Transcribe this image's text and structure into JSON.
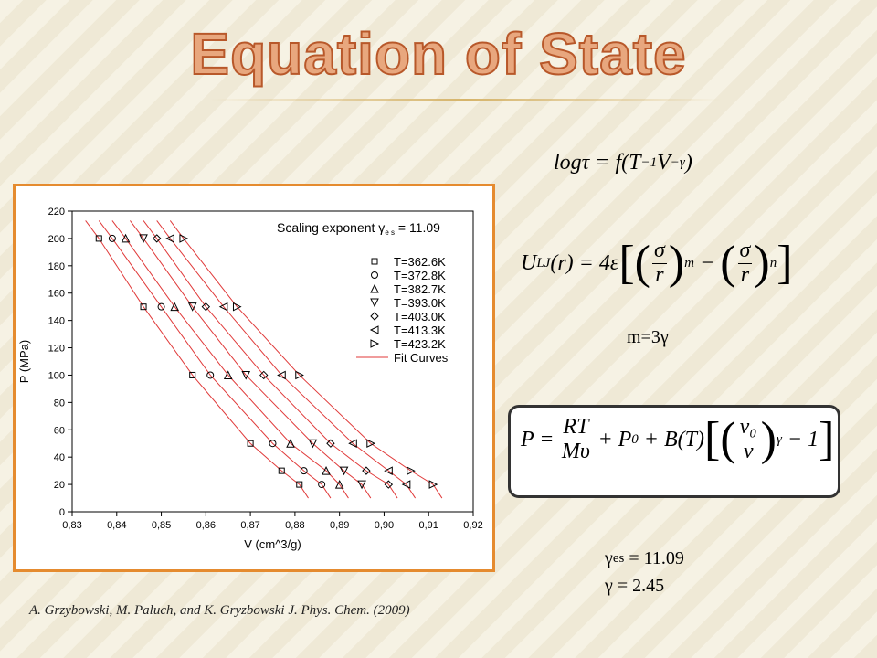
{
  "slide": {
    "title": "Equation of State",
    "eq1": [
      {
        "text": "logτ = f(T"
      },
      {
        "sup": "−1"
      },
      {
        "text": "V"
      },
      {
        "sup": "−γ"
      },
      {
        "text": ")"
      }
    ],
    "eq2": [
      {
        "text": "U"
      },
      {
        "sub": "LJ"
      },
      {
        "text": "(r) = 4ε"
      },
      {
        "big": "["
      },
      {
        "big": "("
      },
      {
        "num": "σ",
        "den": "r"
      },
      {
        "big": ")"
      },
      {
        "sup": "m"
      },
      {
        "text": " − "
      },
      {
        "big": "("
      },
      {
        "num": "σ",
        "den": "r"
      },
      {
        "big": ")"
      },
      {
        "sup": "n"
      },
      {
        "big": "]"
      }
    ],
    "eq3": [
      {
        "text": "m=3γ"
      }
    ],
    "eq4": [
      {
        "text": "P = "
      },
      {
        "num": "RT",
        "den": "Mυ"
      },
      {
        "text": " + P"
      },
      {
        "sub": "0"
      },
      {
        "text": " + B(T)"
      },
      {
        "big": "["
      },
      {
        "big": "("
      },
      {
        "num": "v₀",
        "den": "v"
      },
      {
        "big": ")"
      },
      {
        "sup": "γ"
      },
      {
        "text": " − 1"
      },
      {
        "big": "]"
      }
    ],
    "res1": [
      {
        "text": "γ"
      },
      {
        "sub": "es"
      },
      {
        "text": " = 11.09"
      }
    ],
    "res2": [
      {
        "text": "γ = 2.45"
      }
    ],
    "citation": "A. Grzybowski, M. Paluch, and K. Gryzbowski J. Phys. Chem. (2009)"
  },
  "chart_data": {
    "type": "scatter",
    "xlabel": "V (cm^3/g)",
    "ylabel": "P (MPa)",
    "annotation": [
      {
        "text": "Scaling exponent γ"
      },
      {
        "sub": "e s"
      },
      {
        "text": " = 11.09"
      }
    ],
    "xlim": [
      0.83,
      0.92
    ],
    "ylim": [
      0,
      220
    ],
    "xticks": [
      {
        "value": 0.83,
        "label": "0,83"
      },
      {
        "value": 0.84,
        "label": "0,84"
      },
      {
        "value": 0.85,
        "label": "0,85"
      },
      {
        "value": 0.86,
        "label": "0,86"
      },
      {
        "value": 0.87,
        "label": "0,87"
      },
      {
        "value": 0.88,
        "label": "0,88"
      },
      {
        "value": 0.89,
        "label": "0,89"
      },
      {
        "value": 0.9,
        "label": "0,90"
      },
      {
        "value": 0.91,
        "label": "0,91"
      },
      {
        "value": 0.92,
        "label": "0,92"
      }
    ],
    "yticks": [
      0,
      20,
      40,
      60,
      80,
      100,
      120,
      140,
      160,
      180,
      200,
      220
    ],
    "fit_name": "Fit Curves",
    "fit_color": "#e03a3a",
    "series": [
      {
        "name": "T=362.6K",
        "marker": "square",
        "color": "#000000",
        "x": [
          0.836,
          0.846,
          0.857,
          0.87,
          0.877,
          0.881
        ],
        "y": [
          200,
          150,
          100,
          50,
          30,
          20
        ],
        "fit_x": [
          0.833,
          0.836,
          0.846,
          0.857,
          0.87,
          0.877,
          0.881,
          0.883
        ],
        "fit_y": [
          213,
          200,
          150,
          100,
          50,
          30,
          20,
          10
        ]
      },
      {
        "name": "T=372.8K",
        "marker": "circle",
        "color": "#000000",
        "x": [
          0.839,
          0.85,
          0.861,
          0.875,
          0.882,
          0.886
        ],
        "y": [
          200,
          150,
          100,
          50,
          30,
          20
        ],
        "fit_x": [
          0.836,
          0.839,
          0.85,
          0.861,
          0.875,
          0.882,
          0.886,
          0.888
        ],
        "fit_y": [
          213,
          200,
          150,
          100,
          50,
          30,
          20,
          10
        ]
      },
      {
        "name": "T=382.7K",
        "marker": "triangle-up",
        "color": "#000000",
        "x": [
          0.842,
          0.853,
          0.865,
          0.879,
          0.887,
          0.89
        ],
        "y": [
          200,
          150,
          100,
          50,
          30,
          20
        ],
        "fit_x": [
          0.839,
          0.842,
          0.853,
          0.865,
          0.879,
          0.887,
          0.89,
          0.892
        ],
        "fit_y": [
          213,
          200,
          150,
          100,
          50,
          30,
          20,
          10
        ]
      },
      {
        "name": "T=393.0K",
        "marker": "triangle-down",
        "color": "#000000",
        "x": [
          0.846,
          0.857,
          0.869,
          0.884,
          0.891,
          0.895
        ],
        "y": [
          200,
          150,
          100,
          50,
          30,
          20
        ],
        "fit_x": [
          0.843,
          0.846,
          0.857,
          0.869,
          0.884,
          0.891,
          0.895,
          0.897
        ],
        "fit_y": [
          213,
          200,
          150,
          100,
          50,
          30,
          20,
          10
        ]
      },
      {
        "name": "T=403.0K",
        "marker": "diamond",
        "color": "#000000",
        "x": [
          0.849,
          0.86,
          0.873,
          0.888,
          0.896,
          0.901
        ],
        "y": [
          200,
          150,
          100,
          50,
          30,
          20
        ],
        "fit_x": [
          0.846,
          0.849,
          0.86,
          0.873,
          0.888,
          0.896,
          0.901,
          0.903
        ],
        "fit_y": [
          213,
          200,
          150,
          100,
          50,
          30,
          20,
          10
        ]
      },
      {
        "name": "T=413.3K",
        "marker": "triangle-left",
        "color": "#000000",
        "x": [
          0.852,
          0.864,
          0.877,
          0.893,
          0.901,
          0.905
        ],
        "y": [
          200,
          150,
          100,
          50,
          30,
          20
        ],
        "fit_x": [
          0.849,
          0.852,
          0.864,
          0.877,
          0.893,
          0.901,
          0.905,
          0.907
        ],
        "fit_y": [
          213,
          200,
          150,
          100,
          50,
          30,
          20,
          10
        ]
      },
      {
        "name": "T=423.2K",
        "marker": "triangle-right",
        "color": "#000000",
        "x": [
          0.855,
          0.867,
          0.881,
          0.897,
          0.906,
          0.911
        ],
        "y": [
          200,
          150,
          100,
          50,
          30,
          20
        ],
        "fit_x": [
          0.852,
          0.855,
          0.867,
          0.881,
          0.897,
          0.906,
          0.911,
          0.913
        ],
        "fit_y": [
          213,
          200,
          150,
          100,
          50,
          30,
          20,
          10
        ]
      }
    ]
  }
}
